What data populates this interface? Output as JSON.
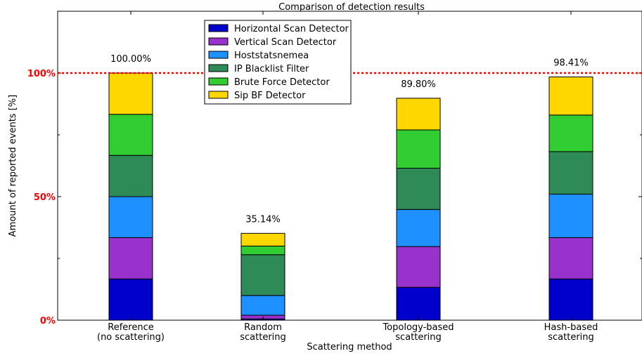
{
  "chart_data": {
    "type": "bar",
    "stacked": true,
    "title": "Comparison of detection results",
    "xlabel": "Scattering method",
    "ylabel": "Amount of reported events [%]",
    "ylim": [
      0,
      125
    ],
    "yticks": [
      {
        "value": 0,
        "label": "0%"
      },
      {
        "value": 50,
        "label": "50%"
      },
      {
        "value": 100,
        "label": "100%"
      }
    ],
    "reference_line": {
      "value": 100,
      "color": "#ff0000",
      "style": "dotted"
    },
    "categories": [
      [
        "Reference",
        "(no scattering)"
      ],
      [
        "Random",
        "scattering"
      ],
      [
        "Topology-based",
        "scattering"
      ],
      [
        "Hash-based",
        "scattering"
      ]
    ],
    "totals": [
      "100.00%",
      "35.14%",
      "89.80%",
      "98.41%"
    ],
    "series": [
      {
        "name": "Horizontal Scan Detector",
        "color": "#0000cd",
        "values": [
          16.7,
          0.5,
          13.3,
          16.7
        ]
      },
      {
        "name": "Vertical Scan Detector",
        "color": "#9932cc",
        "values": [
          16.7,
          1.5,
          16.5,
          16.7
        ]
      },
      {
        "name": "Hoststatsnemea",
        "color": "#1e90ff",
        "values": [
          16.6,
          8.0,
          15.0,
          17.6
        ]
      },
      {
        "name": "IP Blacklist Filter",
        "color": "#2e8b57",
        "values": [
          16.7,
          16.5,
          16.7,
          17.2
        ]
      },
      {
        "name": "Brute Force Detector",
        "color": "#32cd32",
        "values": [
          16.6,
          3.5,
          15.5,
          14.8
        ]
      },
      {
        "name": "Sip BF Detector",
        "color": "#ffd700",
        "values": [
          16.7,
          5.14,
          12.8,
          15.41
        ]
      }
    ],
    "legend": {
      "position": "top-left"
    }
  }
}
